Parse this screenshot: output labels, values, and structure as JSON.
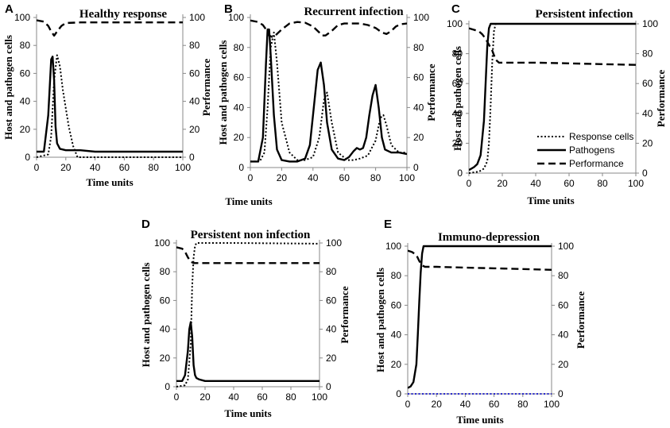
{
  "figure": {
    "legend": {
      "response": "Response cells",
      "pathogen": "Pathogens",
      "performance": "Performance"
    }
  },
  "chart_data": [
    {
      "panel": "A",
      "type": "line",
      "title": "Healthy response",
      "xlabel": "Time units",
      "ylabel": "Host and pathogen cells",
      "y2label": "Performance",
      "xlim": [
        0,
        100
      ],
      "ylim": [
        0,
        100
      ],
      "y2lim": [
        0,
        100
      ],
      "xticks": [
        0,
        20,
        40,
        60,
        80,
        100
      ],
      "yticks": [
        0,
        20,
        40,
        60,
        80,
        100
      ],
      "y2ticks": [
        0,
        20,
        40,
        60,
        80,
        100
      ],
      "series": [
        {
          "name": "Response cells",
          "style": "dotted",
          "axis": "left",
          "x": [
            0,
            8,
            10,
            12,
            14,
            16,
            18,
            20,
            22,
            25,
            28,
            35,
            100
          ],
          "y": [
            0,
            2,
            15,
            55,
            73,
            65,
            48,
            35,
            22,
            8,
            0,
            0,
            0
          ]
        },
        {
          "name": "Pathogens",
          "style": "solid",
          "axis": "left",
          "x": [
            0,
            5,
            8,
            10,
            11,
            12,
            13,
            14,
            16,
            20,
            30,
            40,
            100
          ],
          "y": [
            4,
            4,
            30,
            70,
            72,
            55,
            22,
            10,
            6,
            5,
            5,
            4,
            4
          ]
        },
        {
          "name": "Performance",
          "style": "dashed",
          "axis": "right",
          "x": [
            0,
            5,
            8,
            10,
            12,
            14,
            17,
            20,
            30,
            40,
            100
          ],
          "y": [
            98,
            97,
            94,
            90,
            87,
            90,
            94,
            96,
            96.5,
            96.5,
            96.5
          ]
        }
      ]
    },
    {
      "panel": "B",
      "type": "line",
      "title": "Recurrent infection",
      "xlabel": "Time units",
      "ylabel": "Host and pathogen cells",
      "y2label": "Performance",
      "xlim": [
        0,
        100
      ],
      "ylim": [
        0,
        100
      ],
      "y2lim": [
        0,
        100
      ],
      "xticks": [
        0,
        20,
        40,
        60,
        80,
        100
      ],
      "yticks": [
        0,
        20,
        40,
        60,
        80,
        100
      ],
      "y2ticks": [
        0,
        20,
        40,
        60,
        80,
        100
      ],
      "series": [
        {
          "name": "Response cells",
          "style": "dotted",
          "axis": "left",
          "x": [
            0,
            6,
            9,
            11,
            13,
            15,
            17,
            20,
            25,
            30,
            35,
            40,
            44,
            47,
            49,
            52,
            56,
            62,
            66,
            70,
            75,
            80,
            83,
            85,
            87,
            90,
            95,
            100
          ],
          "y": [
            4,
            4,
            10,
            40,
            80,
            90,
            70,
            30,
            10,
            5,
            5,
            7,
            20,
            45,
            50,
            30,
            10,
            5,
            5,
            6,
            8,
            18,
            33,
            35,
            28,
            15,
            10,
            10
          ]
        },
        {
          "name": "Pathogens",
          "style": "solid",
          "axis": "left",
          "x": [
            0,
            5,
            8,
            10,
            11,
            12,
            13,
            15,
            17,
            20,
            25,
            30,
            35,
            38,
            41,
            43,
            45,
            47,
            49,
            52,
            56,
            60,
            63,
            66,
            68,
            70,
            72,
            74,
            76,
            78,
            80,
            82,
            84,
            86,
            90,
            95,
            100
          ],
          "y": [
            4,
            4,
            20,
            70,
            92,
            92,
            75,
            35,
            12,
            5,
            4,
            4,
            6,
            15,
            45,
            65,
            70,
            55,
            30,
            12,
            6,
            5,
            7,
            11,
            13,
            12,
            13,
            20,
            35,
            48,
            55,
            40,
            20,
            12,
            10,
            10,
            9
          ]
        },
        {
          "name": "Performance",
          "style": "dashed",
          "axis": "right",
          "x": [
            0,
            5,
            8,
            10,
            12,
            14,
            16,
            20,
            25,
            30,
            35,
            40,
            44,
            46,
            48,
            52,
            56,
            60,
            65,
            70,
            75,
            80,
            84,
            87,
            90,
            93,
            96,
            100
          ],
          "y": [
            98,
            97,
            95,
            92,
            88,
            87,
            88,
            92,
            96,
            97,
            96.5,
            94,
            90,
            88,
            88,
            91,
            95,
            96,
            96,
            96,
            95,
            93,
            90,
            89,
            91,
            94,
            95.5,
            96
          ]
        }
      ]
    },
    {
      "panel": "C",
      "type": "line",
      "title": "Persistent infection",
      "xlabel": "Time units",
      "ylabel": "Host and pathogen cells",
      "y2label": "Performance",
      "xlim": [
        0,
        100
      ],
      "ylim": [
        0,
        100
      ],
      "y2lim": [
        0,
        100
      ],
      "xticks": [
        0,
        20,
        40,
        60,
        80,
        100
      ],
      "yticks": [
        0,
        20,
        40,
        60,
        80,
        100
      ],
      "y2ticks": [
        0,
        20,
        40,
        60,
        80,
        100
      ],
      "series": [
        {
          "name": "Response cells",
          "style": "dotted",
          "axis": "left",
          "x": [
            0,
            6,
            9,
            11,
            12,
            13,
            14,
            15,
            16,
            17,
            100
          ],
          "y": [
            0,
            1,
            3,
            8,
            20,
            45,
            75,
            95,
            100,
            100,
            100
          ]
        },
        {
          "name": "Pathogens",
          "style": "solid",
          "axis": "left",
          "x": [
            0,
            3,
            5,
            7,
            9,
            10,
            11,
            12,
            13,
            14,
            100
          ],
          "y": [
            2,
            4,
            6,
            12,
            35,
            60,
            85,
            97,
            100,
            100,
            100
          ]
        },
        {
          "name": "Performance",
          "style": "dashed",
          "axis": "right",
          "x": [
            0,
            3,
            6,
            8,
            10,
            12,
            14,
            16,
            18,
            20,
            40,
            60,
            80,
            100
          ],
          "y": [
            97,
            96,
            95,
            93,
            90,
            86,
            82,
            76,
            74,
            74,
            74,
            73.5,
            73,
            72.5
          ]
        }
      ]
    },
    {
      "panel": "D",
      "type": "line",
      "title": "Persistent non infection",
      "xlabel": "Time units",
      "ylabel": "Host and pathogen cells",
      "y2label": "Performance",
      "xlim": [
        0,
        100
      ],
      "ylim": [
        0,
        100
      ],
      "y2lim": [
        0,
        100
      ],
      "xticks": [
        0,
        20,
        40,
        60,
        80,
        100
      ],
      "yticks": [
        0,
        20,
        40,
        60,
        80,
        100
      ],
      "y2ticks": [
        0,
        20,
        40,
        60,
        80,
        100
      ],
      "series": [
        {
          "name": "Response cells",
          "style": "dotted",
          "axis": "left",
          "x": [
            0,
            6,
            8,
            10,
            11,
            12,
            13,
            14,
            20,
            40,
            100
          ],
          "y": [
            0,
            1,
            5,
            30,
            70,
            90,
            98,
            100,
            100,
            100,
            99.5
          ]
        },
        {
          "name": "Pathogens",
          "style": "solid",
          "axis": "left",
          "x": [
            0,
            4,
            6,
            8,
            9,
            10,
            11,
            12,
            13,
            14,
            16,
            20,
            40,
            100
          ],
          "y": [
            4,
            4,
            8,
            25,
            40,
            45,
            35,
            15,
            8,
            6,
            5,
            4,
            4,
            4
          ]
        },
        {
          "name": "Performance",
          "style": "dashed",
          "axis": "right",
          "x": [
            0,
            4,
            6,
            8,
            10,
            12,
            14,
            20,
            60,
            100
          ],
          "y": [
            97,
            96,
            94,
            90,
            87,
            86,
            86,
            86,
            86,
            86
          ]
        }
      ]
    },
    {
      "panel": "E",
      "type": "line",
      "title": "Immuno-depression",
      "xlabel": "Time units",
      "ylabel": "Host and pathogen cells",
      "y2label": "Performance",
      "xlim": [
        0,
        100
      ],
      "ylim": [
        0,
        100
      ],
      "y2lim": [
        0,
        100
      ],
      "xticks": [
        0,
        20,
        40,
        60,
        80,
        100
      ],
      "yticks": [
        0,
        20,
        40,
        60,
        80,
        100
      ],
      "y2ticks": [
        0,
        20,
        40,
        60,
        80,
        100
      ],
      "series": [
        {
          "name": "Response cells",
          "style": "dotted",
          "color": "#2a2ad0",
          "axis": "left",
          "x": [
            0,
            100
          ],
          "y": [
            0,
            0
          ]
        },
        {
          "name": "Pathogens",
          "style": "solid",
          "axis": "left",
          "x": [
            0,
            2,
            4,
            6,
            7,
            8,
            9,
            10,
            11,
            12,
            100
          ],
          "y": [
            4,
            5,
            8,
            20,
            40,
            62,
            82,
            95,
            100,
            100,
            100
          ]
        },
        {
          "name": "Performance",
          "style": "dashed",
          "axis": "right",
          "x": [
            0,
            3,
            6,
            8,
            10,
            12,
            20,
            40,
            60,
            80,
            100
          ],
          "y": [
            97,
            96,
            94,
            90,
            87,
            86,
            86,
            85.5,
            85,
            84.5,
            84
          ]
        }
      ]
    }
  ]
}
